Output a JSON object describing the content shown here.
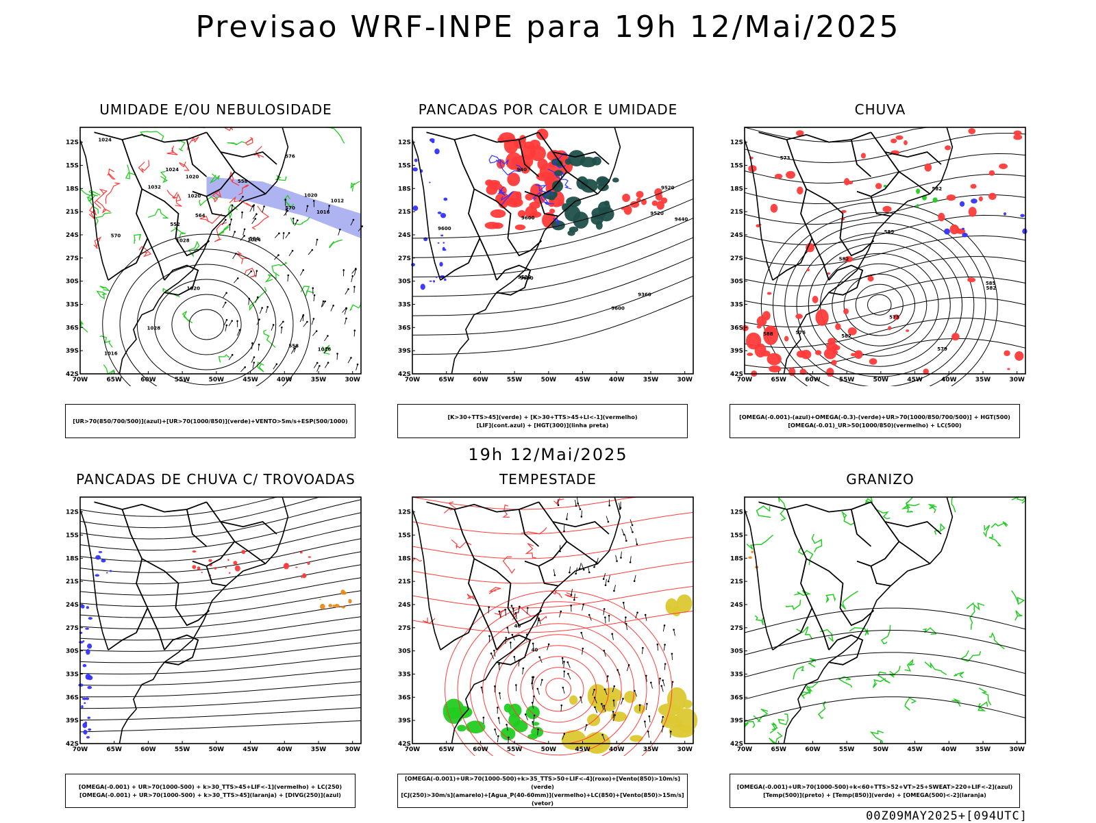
{
  "title": "Previsao WRF-INPE  para 19h 12/Mai/2025",
  "subtitle": "19h 12/Mai/2025",
  "footer": "00Z09MAY2025+[094UTC]",
  "axes": {
    "lat_labels": [
      "12S",
      "15S",
      "18S",
      "21S",
      "24S",
      "27S",
      "30S",
      "33S",
      "36S",
      "39S",
      "42S"
    ],
    "lon_labels": [
      "70W",
      "65W",
      "60W",
      "55W",
      "50W",
      "45W",
      "40W",
      "35W",
      "30W"
    ]
  },
  "colors": {
    "blue": "#3333ff",
    "green": "#22cc22",
    "red": "#ff3a3a",
    "dark_teal": "#1f4f4a",
    "yellow": "#dcc830",
    "orange": "#e88a1a",
    "lavender": "#9aa0ee"
  },
  "panels": [
    {
      "title": "UMIDADE E/OU NEBULOSIDADE",
      "legend": [
        "[UR>70(850/700/500)](azul)+[UR>70(1000/850)](verde)+VENTO>5m/s+ESP(500/1000)"
      ],
      "contour_labels": [
        "1016",
        "1012",
        "1016",
        "1016",
        "1020",
        "1024",
        "1020",
        "1024",
        "1028",
        "1032",
        "1028",
        "1020",
        "1020",
        "1024",
        "570",
        "564",
        "558",
        "576",
        "552",
        "564",
        "558",
        "570"
      ]
    },
    {
      "title": "PANCADAS POR CALOR E UMIDADE",
      "legend": [
        "[K>30+TTS>45](verde) + [K>30+TTS>45+LI<-1](vermelho)",
        "[LIF](cont.azul) + [HGT(300)](linha preta)"
      ],
      "contour_labels": [
        "9600",
        "9600",
        "9600",
        "9600",
        "9520",
        "9520",
        "9520",
        "9440",
        "9360",
        "940"
      ]
    },
    {
      "title": "CHUVA",
      "legend": [
        "[OMEGA(-0.001)-(azul)+OMEGA(-0.3)-(verde)+UR>70(1000/850/700/500)] + HGT(500)",
        "[OMEGA(-0.01)_UR>50(1000/850)(vermelho) + LC(500)"
      ],
      "contour_labels": [
        "585",
        "582",
        "582",
        "576",
        "582",
        "573",
        "585",
        "582",
        "579",
        "573",
        "588"
      ]
    },
    {
      "title": "PANCADAS DE CHUVA C/ TROVOADAS",
      "legend": [
        "[OMEGA(-0.001) + UR>70(1000-500) + k>30_TTS>45+LIF<-1](vermelho) + LC(250)",
        "[OMEGA(-0.001) + UR>70(1000-500) + k>30_TTS>45](laranja) + [DIVG(250)](azul)"
      ],
      "contour_labels": []
    },
    {
      "title": "TEMPESTADE",
      "legend": [
        "[OMEGA(-0.001)+UR>70(1000-500)+k>35_TTS>50+LIF<-4](roxo)+[Vento(850)>10m/s](verde)",
        "[CJ(250)>30m/s](amarelo)+[Agua_P(40-60mm)](vermelho)+LC(850)+[Vento(850)>15m/s](vetor)"
      ],
      "contour_labels": [
        "40",
        "40"
      ]
    },
    {
      "title": "GRANIZO",
      "legend": [
        "[OMEGA(-0.001)+UR>70(1000-500)+k<60+TTS>52+VT>25+SWEAT>220+LIF<-2](azul)",
        "[Temp(500)](preto) + [Temp(850)](verde) + [OMEGA(500)<-2](laranja)"
      ],
      "contour_labels": []
    }
  ]
}
